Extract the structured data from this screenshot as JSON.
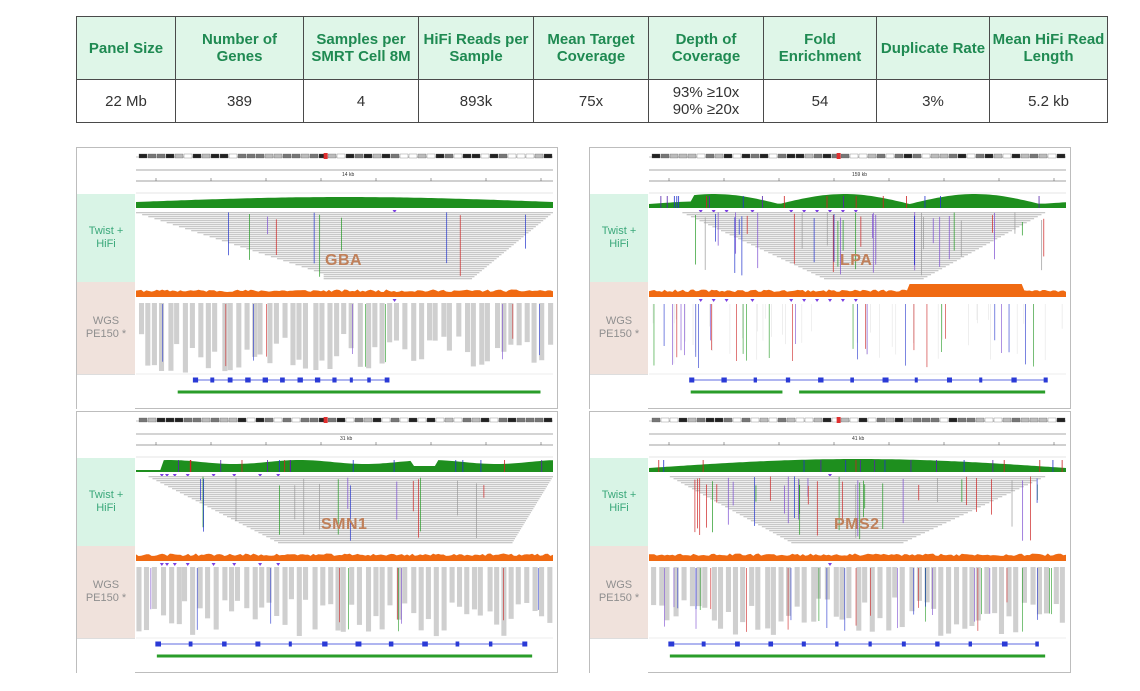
{
  "stats_table": {
    "headers": [
      "Panel Size",
      "Number of Genes",
      "Samples per SMRT Cell 8M",
      "HiFi Reads per Sample",
      "Mean Target Coverage",
      "Depth of Coverage",
      "Fold Enrichment",
      "Duplicate Rate",
      "Mean HiFi Read Length"
    ],
    "values": [
      "22 Mb",
      "389",
      "4",
      "893k",
      "75x",
      "93% ≥10x\n90% ≥20x",
      "54",
      "3%",
      "5.2 kb"
    ]
  },
  "panels": [
    {
      "gene": "GBA",
      "scale": "14 kb",
      "twist_label": [
        "Twist +",
        "HiFi"
      ],
      "wgs_label": [
        "WGS",
        "PE150 *"
      ]
    },
    {
      "gene": "LPA",
      "scale": "159 kb",
      "twist_label": [
        "Twist +",
        "HiFi"
      ],
      "wgs_label": [
        "WGS",
        "PE150 *"
      ]
    },
    {
      "gene": "SMN1",
      "scale": "31 kb",
      "twist_label": [
        "Twist +",
        "HiFi"
      ],
      "wgs_label": [
        "WGS",
        "PE150 *"
      ]
    },
    {
      "gene": "PMS2",
      "scale": "41 kb",
      "twist_label": [
        "Twist +",
        "HiFi"
      ],
      "wgs_label": [
        "WGS",
        "PE150 *"
      ]
    }
  ],
  "colors": {
    "header_bg": "#dff6e8",
    "header_text": "#1f8a52",
    "twist_coverage": "#1e8f1e",
    "wgs_coverage": "#f06a12",
    "gene_label": "#c0805a",
    "refseq_bar": "#2a9d2a"
  }
}
